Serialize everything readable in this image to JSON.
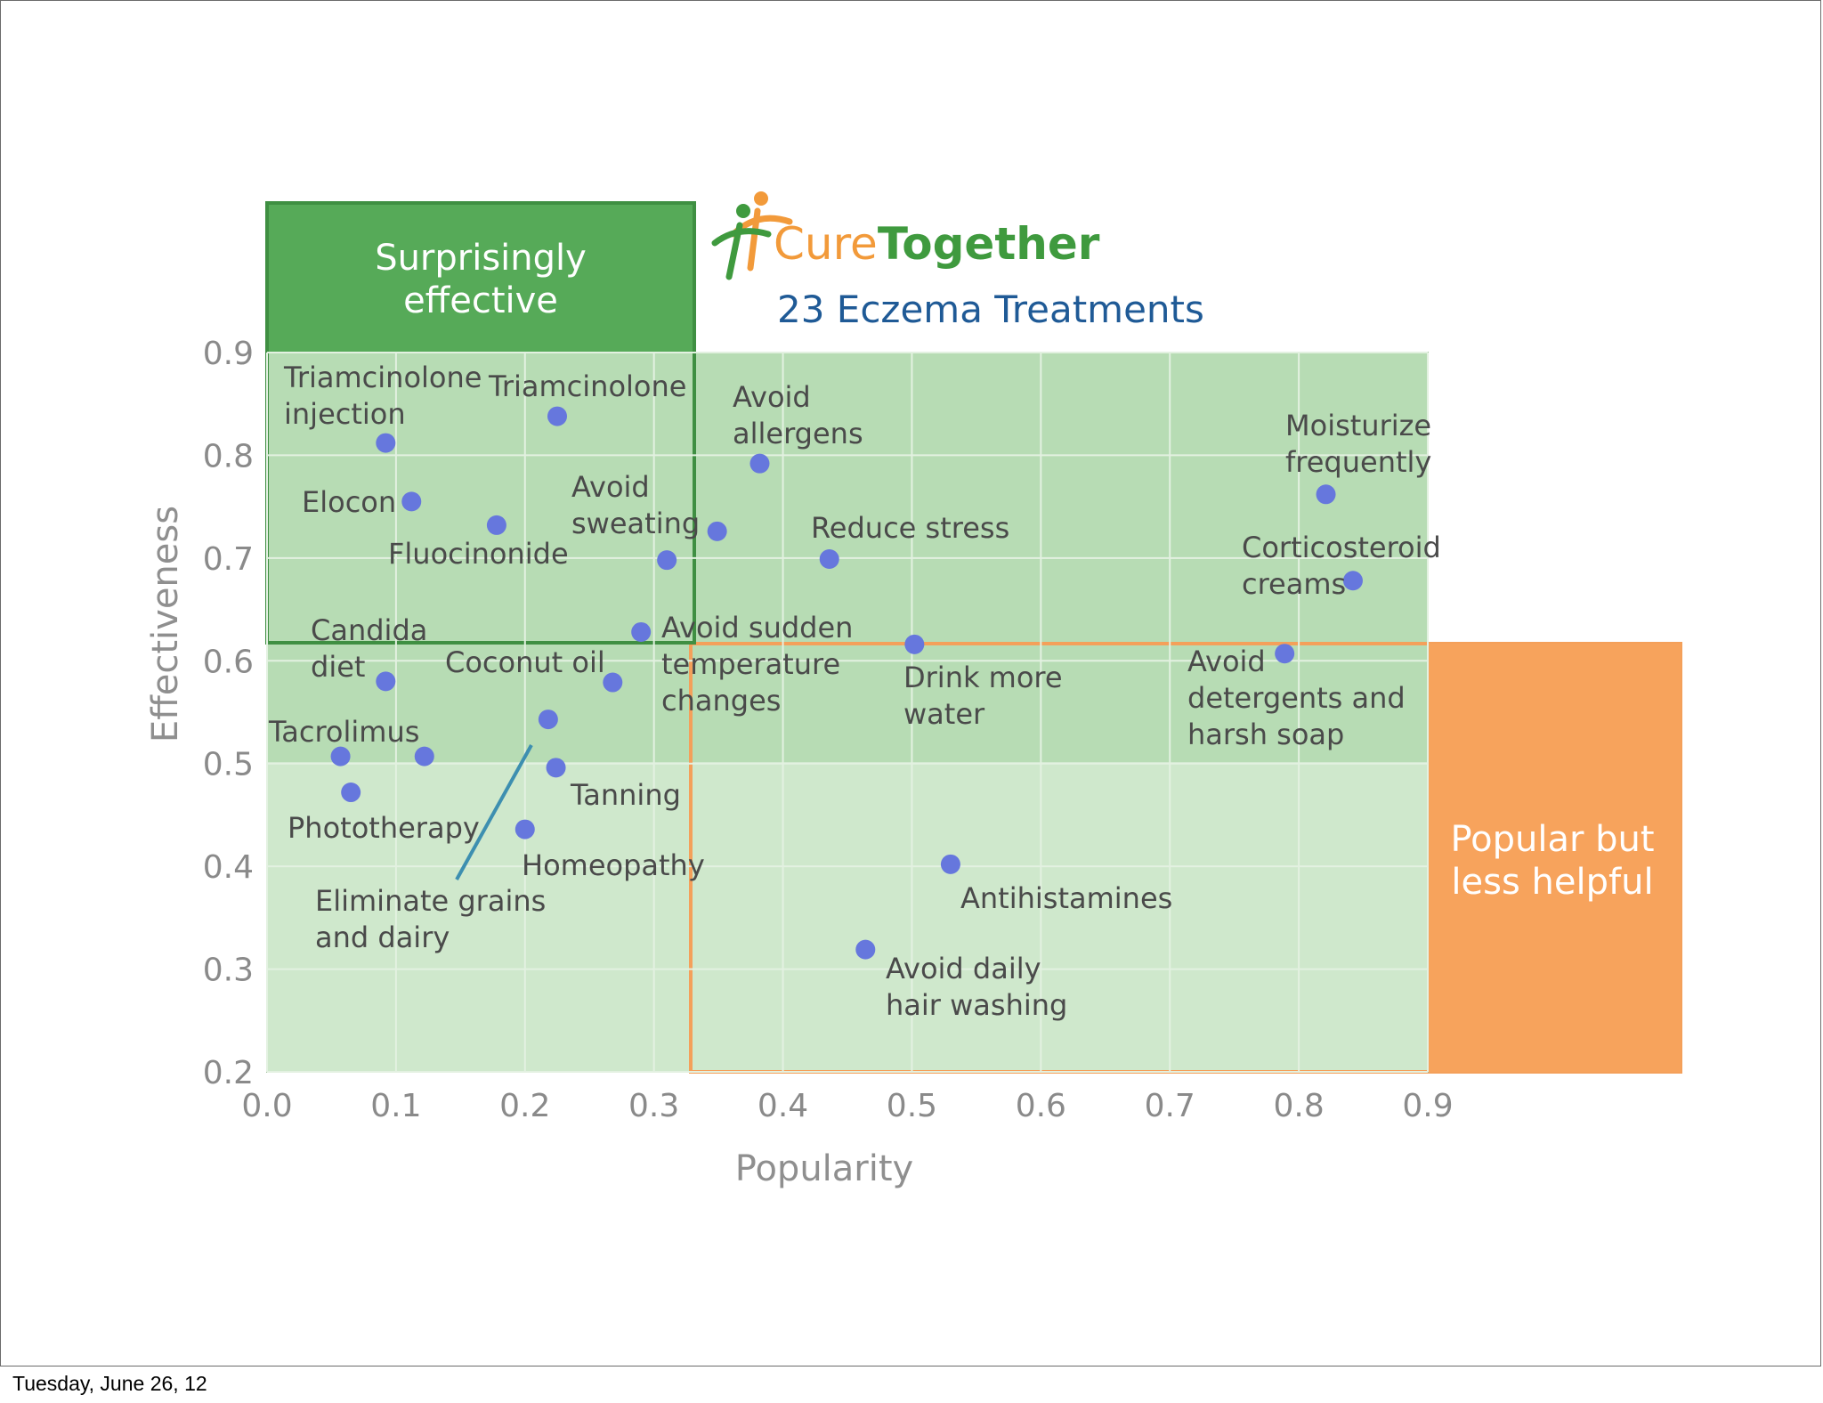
{
  "footer": {
    "date": "Tuesday, June 26, 12"
  },
  "brand": {
    "logo_text_part1": "Cure",
    "logo_text_part2": "Together",
    "subtitle": "23 Eczema Treatments",
    "colors": {
      "orange": "#f29a3a",
      "green": "#3f9a3e",
      "blue": "#1f5a96"
    }
  },
  "chart_data": {
    "type": "scatter",
    "title": "23 Eczema Treatments",
    "xlabel": "Popularity",
    "ylabel": "Effectiveness",
    "xlim": [
      0.0,
      0.9
    ],
    "ylim": [
      0.2,
      0.9
    ],
    "xticks": [
      "0.0",
      "0.1",
      "0.2",
      "0.3",
      "0.4",
      "0.5",
      "0.6",
      "0.7",
      "0.8",
      "0.9"
    ],
    "yticks": [
      "0.2",
      "0.3",
      "0.4",
      "0.5",
      "0.6",
      "0.7",
      "0.8",
      "0.9"
    ],
    "grid": true,
    "point_color": "#6677dd",
    "regions": [
      {
        "name": "Surprisingly effective",
        "lines": [
          "Surprisingly",
          "effective"
        ],
        "color": "#56aa58"
      },
      {
        "name": "Popular but less helpful",
        "lines": [
          "Popular but",
          "less helpful"
        ],
        "color": "#f7a35c"
      }
    ],
    "points": [
      {
        "label": "Triamcinolone injection",
        "label_lines": [
          "Triamcinolone",
          "injection"
        ],
        "x": 0.092,
        "y": 0.812
      },
      {
        "label": "Triamcinolone",
        "label_lines": [
          "Triamcinolone"
        ],
        "x": 0.225,
        "y": 0.838
      },
      {
        "label": "Elocon",
        "label_lines": [
          "Elocon"
        ],
        "x": 0.112,
        "y": 0.755
      },
      {
        "label": "Fluocinonide",
        "label_lines": [
          "Fluocinonide"
        ],
        "x": 0.178,
        "y": 0.732
      },
      {
        "label": "Avoid sweating",
        "label_lines": [
          "Avoid",
          "sweating"
        ],
        "x": 0.31,
        "y": 0.698
      },
      {
        "label": "Avoid allergens",
        "label_lines": [
          "Avoid",
          "allergens"
        ],
        "x": 0.382,
        "y": 0.792
      },
      {
        "label": "Unlabeled treatment",
        "label_lines": [],
        "x": 0.349,
        "y": 0.726
      },
      {
        "label": "Reduce stress",
        "label_lines": [
          "Reduce stress"
        ],
        "x": 0.436,
        "y": 0.699
      },
      {
        "label": "Moisturize frequently",
        "label_lines": [
          "Moisturize",
          "frequently"
        ],
        "x": 0.821,
        "y": 0.762
      },
      {
        "label": "Corticosteroid creams",
        "label_lines": [
          "Corticosteroid",
          "creams"
        ],
        "x": 0.842,
        "y": 0.678
      },
      {
        "label": "Avoid sudden temperature changes",
        "label_lines": [
          "Avoid sudden",
          "temperature",
          "changes"
        ],
        "x": 0.29,
        "y": 0.628
      },
      {
        "label": "Drink more water",
        "label_lines": [
          "Drink more",
          "water"
        ],
        "x": 0.502,
        "y": 0.616
      },
      {
        "label": "Avoid detergents and harsh soap",
        "label_lines": [
          "Avoid",
          "detergents and",
          "harsh soap"
        ],
        "x": 0.789,
        "y": 0.607
      },
      {
        "label": "Candida diet",
        "label_lines": [
          "Candida",
          "diet"
        ],
        "x": 0.092,
        "y": 0.58
      },
      {
        "label": "Coconut oil",
        "label_lines": [
          "Coconut oil"
        ],
        "x": 0.268,
        "y": 0.579
      },
      {
        "label": "Eliminate grains and dairy",
        "label_lines": [
          "Eliminate grains",
          "and dairy"
        ],
        "x": 0.218,
        "y": 0.543
      },
      {
        "label": "Tacrolimus",
        "label_lines": [
          "Tacrolimus"
        ],
        "x": 0.057,
        "y": 0.507
      },
      {
        "label": "Unlabeled treatment",
        "label_lines": [],
        "x": 0.122,
        "y": 0.507
      },
      {
        "label": "Tanning",
        "label_lines": [
          "Tanning"
        ],
        "x": 0.224,
        "y": 0.496
      },
      {
        "label": "Phototherapy",
        "label_lines": [
          "Phototherapy"
        ],
        "x": 0.065,
        "y": 0.472
      },
      {
        "label": "Homeopathy",
        "label_lines": [
          "Homeopathy"
        ],
        "x": 0.2,
        "y": 0.436
      },
      {
        "label": "Antihistamines",
        "label_lines": [
          "Antihistamines"
        ],
        "x": 0.53,
        "y": 0.402
      },
      {
        "label": "Avoid daily hair washing",
        "label_lines": [
          "Avoid daily",
          "hair washing"
        ],
        "x": 0.464,
        "y": 0.319
      }
    ]
  }
}
